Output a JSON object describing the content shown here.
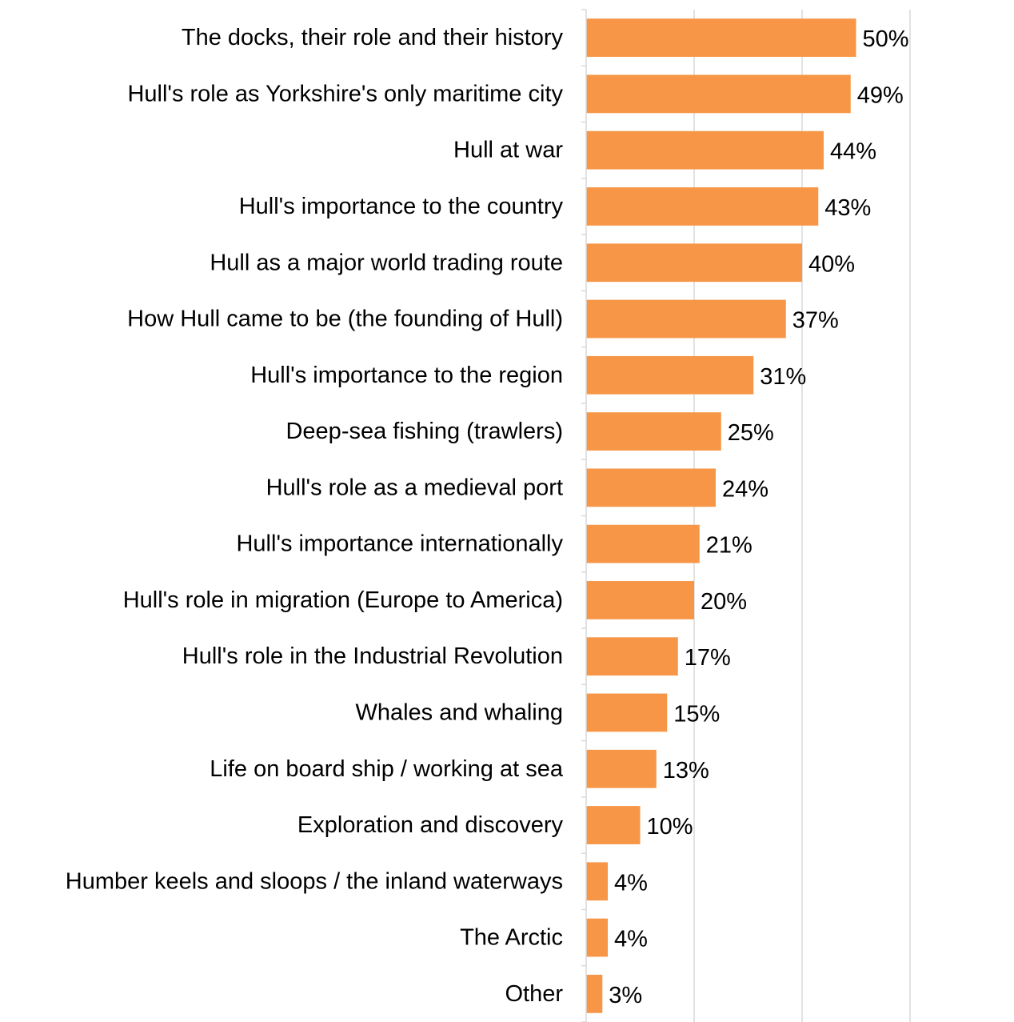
{
  "chart_data": {
    "type": "bar",
    "orientation": "horizontal",
    "title": "",
    "xlabel": "",
    "ylabel": "",
    "xlim": [
      0,
      60
    ],
    "grid": true,
    "bar_color": "#F79646",
    "categories": [
      "The docks, their role and their history",
      "Hull's role as Yorkshire's only maritime city",
      "Hull at war",
      "Hull's importance to the country",
      "Hull as a major world trading route",
      "How Hull came to be (the founding of Hull)",
      "Hull's importance to the region",
      "Deep-sea fishing (trawlers)",
      "Hull's role as a medieval port",
      "Hull's importance internationally",
      "Hull's role in migration (Europe to America)",
      "Hull's role in the Industrial Revolution",
      "Whales and whaling",
      "Life on board ship / working at sea",
      "Exploration and discovery",
      "Humber keels and sloops / the inland waterways",
      "The Arctic",
      "Other"
    ],
    "values": [
      50,
      49,
      44,
      43,
      40,
      37,
      31,
      25,
      24,
      21,
      20,
      17,
      15,
      13,
      10,
      4,
      4,
      3
    ],
    "value_labels": [
      "50%",
      "49%",
      "44%",
      "43%",
      "40%",
      "37%",
      "31%",
      "25%",
      "24%",
      "21%",
      "20%",
      "17%",
      "15%",
      "13%",
      "10%",
      "4%",
      "4%",
      "3%"
    ]
  }
}
